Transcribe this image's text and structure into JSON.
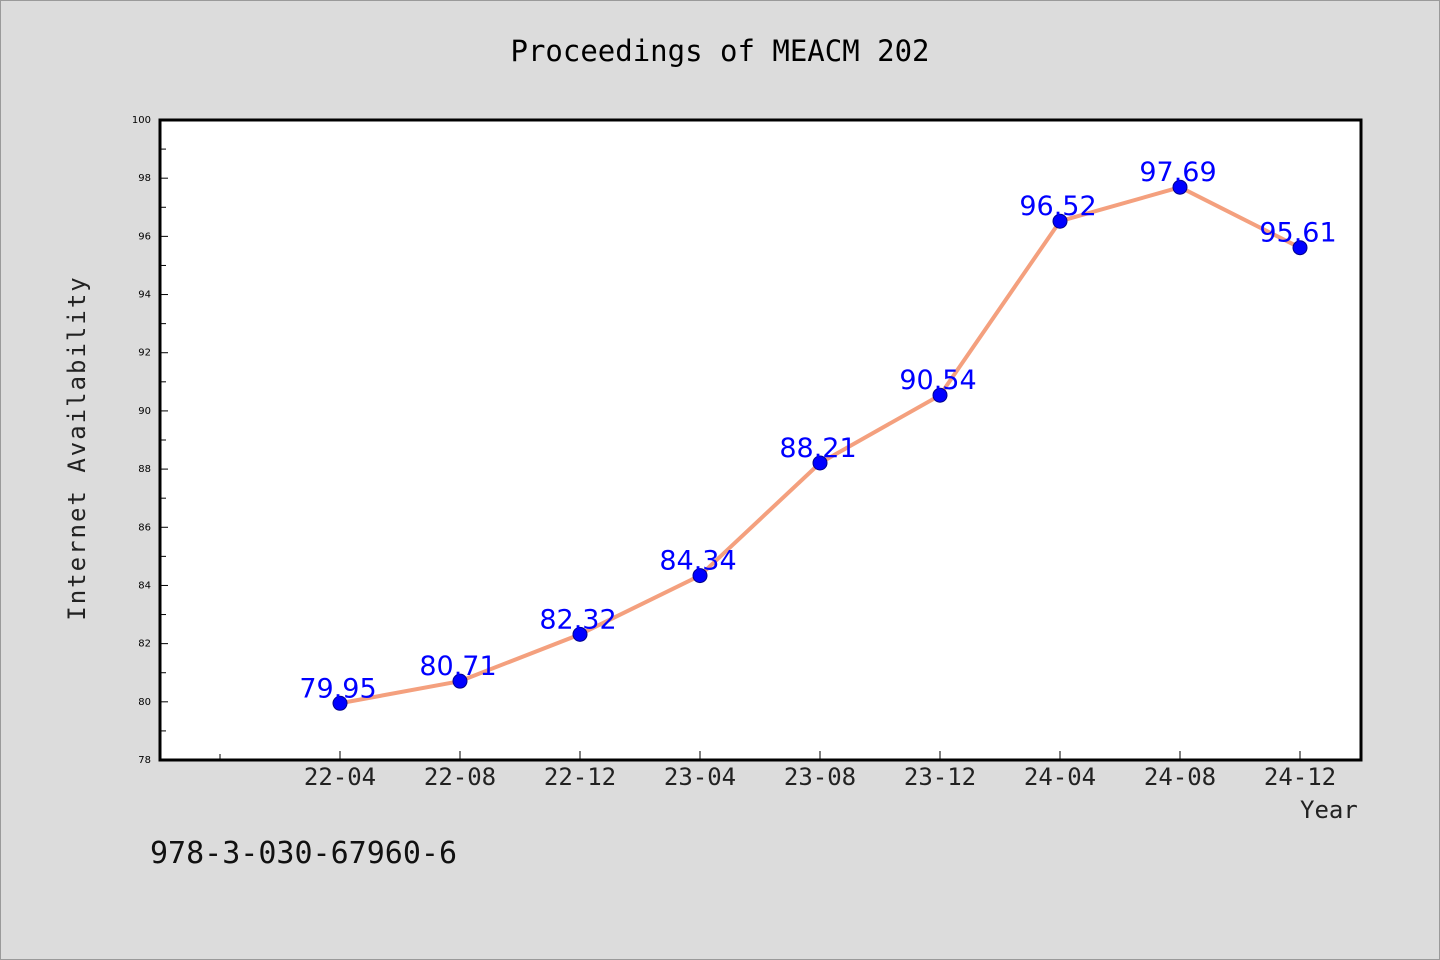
{
  "chart_data": {
    "type": "line",
    "title": "Proceedings of MEACM 202",
    "xlabel": "Year",
    "ylabel": "Internet Availability",
    "categories": [
      "22-04",
      "22-08",
      "22-12",
      "23-04",
      "23-08",
      "23-12",
      "24-04",
      "24-08",
      "24-12"
    ],
    "values": [
      79.95,
      80.71,
      82.32,
      84.34,
      88.21,
      90.54,
      96.52,
      97.69,
      95.61
    ],
    "value_labels": [
      "79.95",
      "80.71",
      "82.32",
      "84.34",
      "88.21",
      "90.54",
      "96.52",
      "97.69",
      "95.61"
    ],
    "ylim": [
      78,
      100
    ],
    "yticks": [
      78,
      80,
      82,
      84,
      86,
      88,
      90,
      92,
      94,
      96,
      98,
      100
    ],
    "grid": false,
    "colors": {
      "line": "#f4a07e",
      "marker": "#0000ff",
      "marker_edge": "#00008b",
      "value_label": "#0000ff",
      "plot_background": "#ffffff",
      "page_background": "#dcdcdc"
    }
  },
  "footer": {
    "isbn": "978-3-030-67960-6"
  }
}
